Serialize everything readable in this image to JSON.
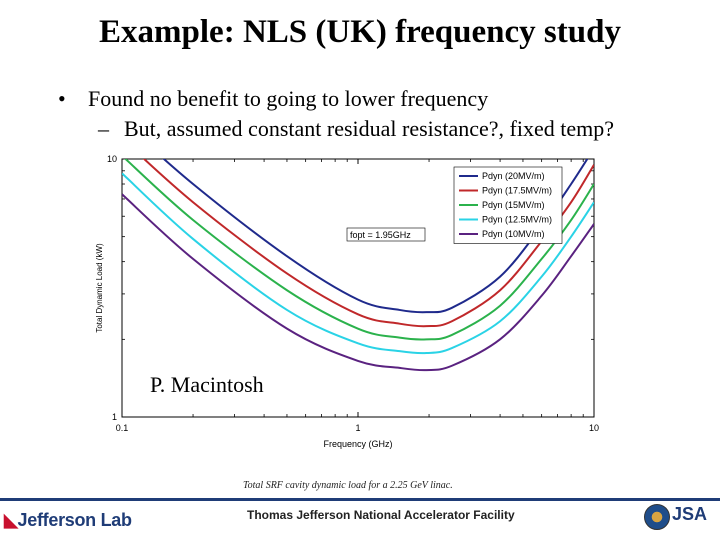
{
  "slide": {
    "title": "Example: NLS (UK) frequency study",
    "bullet1": "Found no benefit to going to lower frequency",
    "bullet2": "But, assumed constant residual resistance?, fixed temp?",
    "bullet1_marker": "•",
    "bullet2_marker": "–",
    "credit": "P. Macintosh",
    "caption": "Total SRF cavity dynamic load for a 2.25 GeV linac."
  },
  "footer": {
    "logo_text": "Jefferson Lab",
    "facility": "Thomas Jefferson National Accelerator Facility",
    "right_logo": "JSA"
  },
  "chart_data": {
    "type": "line",
    "xlabel": "Frequency (GHz)",
    "ylabel": "Total Dynamic Load (kW)",
    "xscale": "log",
    "yscale": "log",
    "xlim": [
      0.1,
      10
    ],
    "ylim": [
      1,
      10
    ],
    "xticks": [
      "0.1",
      "1",
      "10"
    ],
    "yticks": [
      "1",
      "10"
    ],
    "annotation": "fopt = 1.95GHz",
    "legend_position": "top-right",
    "x": [
      0.1,
      0.2,
      0.5,
      1.0,
      1.5,
      1.95,
      2.5,
      4.0,
      6.0,
      8.0,
      10.0
    ],
    "series": [
      {
        "name": "Pdyn (20MV/m)",
        "color": "#1f2a8c",
        "values": [
          14.0,
          8.0,
          4.2,
          2.85,
          2.6,
          2.55,
          2.65,
          3.5,
          5.5,
          8.0,
          11.0
        ]
      },
      {
        "name": "Pdyn (17.5MV/m)",
        "color": "#c0282a",
        "values": [
          12.0,
          6.8,
          3.6,
          2.5,
          2.3,
          2.25,
          2.35,
          3.1,
          4.8,
          6.8,
          9.5
        ]
      },
      {
        "name": "Pdyn (15MV/m)",
        "color": "#2bb24c",
        "values": [
          10.3,
          5.8,
          3.1,
          2.2,
          2.03,
          2.0,
          2.08,
          2.7,
          4.1,
          5.8,
          8.0
        ]
      },
      {
        "name": "Pdyn (12.5MV/m)",
        "color": "#2ad3e6",
        "values": [
          8.8,
          4.9,
          2.6,
          1.93,
          1.8,
          1.77,
          1.85,
          2.35,
          3.5,
          5.0,
          6.8
        ]
      },
      {
        "name": "Pdyn (10MV/m)",
        "color": "#5a2280",
        "values": [
          7.3,
          4.1,
          2.2,
          1.65,
          1.55,
          1.52,
          1.58,
          2.0,
          2.95,
          4.2,
          5.6
        ]
      }
    ]
  }
}
